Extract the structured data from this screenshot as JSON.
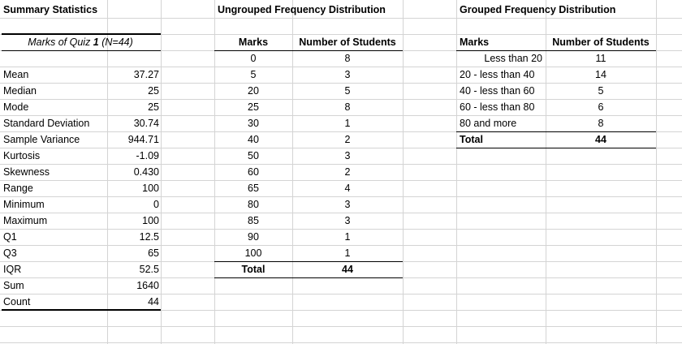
{
  "summary": {
    "title": "Summary Statistics",
    "subtitle_prefix": "Marks of Quiz ",
    "subtitle_num": "1",
    "subtitle_suffix": " (N=44)",
    "rows": [
      {
        "label": "Mean",
        "value": "37.27"
      },
      {
        "label": "Median",
        "value": "25"
      },
      {
        "label": "Mode",
        "value": "25"
      },
      {
        "label": "Standard Deviation",
        "value": "30.74"
      },
      {
        "label": "Sample Variance",
        "value": "944.71"
      },
      {
        "label": "Kurtosis",
        "value": "-1.09"
      },
      {
        "label": "Skewness",
        "value": "0.430"
      },
      {
        "label": "Range",
        "value": "100"
      },
      {
        "label": "Minimum",
        "value": "0"
      },
      {
        "label": "Maximum",
        "value": "100"
      },
      {
        "label": "Q1",
        "value": "12.5"
      },
      {
        "label": "Q3",
        "value": "65"
      },
      {
        "label": "IQR",
        "value": "52.5"
      },
      {
        "label": "Sum",
        "value": "1640"
      },
      {
        "label": "Count",
        "value": "44"
      }
    ]
  },
  "ungrouped": {
    "title": "Ungrouped Frequency Distribution",
    "header_marks": "Marks",
    "header_students": "Number of Students",
    "rows": [
      {
        "marks": "0",
        "students": "8"
      },
      {
        "marks": "5",
        "students": "3"
      },
      {
        "marks": "20",
        "students": "5"
      },
      {
        "marks": "25",
        "students": "8"
      },
      {
        "marks": "30",
        "students": "1"
      },
      {
        "marks": "40",
        "students": "2"
      },
      {
        "marks": "50",
        "students": "3"
      },
      {
        "marks": "60",
        "students": "2"
      },
      {
        "marks": "65",
        "students": "4"
      },
      {
        "marks": "80",
        "students": "3"
      },
      {
        "marks": "85",
        "students": "3"
      },
      {
        "marks": "90",
        "students": "1"
      },
      {
        "marks": "100",
        "students": "1"
      }
    ],
    "total_label": "Total",
    "total_value": "44"
  },
  "grouped": {
    "title": "Grouped Frequency Distribution",
    "header_marks": "Marks",
    "header_students": "Number of Students",
    "rows": [
      {
        "marks": "Less than 20",
        "students": "11"
      },
      {
        "marks": "20 - less than 40",
        "students": "14"
      },
      {
        "marks": "40 - less than 60",
        "students": "5"
      },
      {
        "marks": "60 - less than 80",
        "students": "6"
      },
      {
        "marks": "80 and more",
        "students": "8"
      }
    ],
    "total_label": "Total",
    "total_value": "44"
  }
}
